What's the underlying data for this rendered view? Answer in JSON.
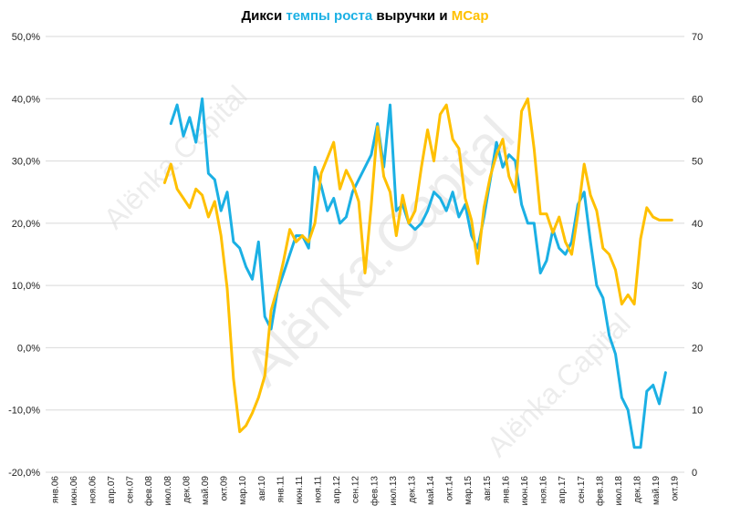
{
  "colors": {
    "revenue": "#1BB0E4",
    "mcap": "#FFC000",
    "title_text": "#000000",
    "grid": "#D9D9D9"
  },
  "chart_data": {
    "type": "line",
    "title_parts": [
      {
        "text": "Дикси ",
        "color": "#000000"
      },
      {
        "text": "темпы роста",
        "color": "#1BB0E4"
      },
      {
        "text": " выручки и ",
        "color": "#000000"
      },
      {
        "text": "MCap",
        "color": "#FFC000"
      }
    ],
    "left_axis": {
      "ylim": [
        -0.2,
        0.5
      ],
      "ticks": [
        -0.2,
        -0.1,
        0,
        0.1,
        0.2,
        0.3,
        0.4,
        0.5
      ],
      "tick_labels": [
        "-20,0%",
        "-10,0%",
        "0,0%",
        "10,0%",
        "20,0%",
        "30,0%",
        "40,0%",
        "50,0%"
      ]
    },
    "right_axis": {
      "ylim": [
        0,
        70
      ],
      "ticks": [
        0,
        10,
        20,
        30,
        40,
        50,
        60,
        70
      ],
      "tick_labels": [
        "0",
        "10",
        "20",
        "30",
        "40",
        "50",
        "60",
        "70"
      ]
    },
    "x_axis": {
      "labels": [
        "янв.06",
        "июн.06",
        "ноя.06",
        "апр.07",
        "сен.07",
        "фев.08",
        "июл.08",
        "дек.08",
        "май.09",
        "окт.09",
        "мар.10",
        "авг.10",
        "янв.11",
        "июн.11",
        "ноя.11",
        "апр.12",
        "сен.12",
        "фев.13",
        "июл.13",
        "дек.13",
        "май.14",
        "окт.14",
        "мар.15",
        "авг.15",
        "янв.16",
        "июн.16",
        "ноя.16",
        "апр.17",
        "сен.17",
        "фев.18",
        "июл.18",
        "дек.18",
        "май.19",
        "окт.19"
      ]
    },
    "grid": "horizontal",
    "watermark": "Alёnka.Capital",
    "series": [
      {
        "axis": "left",
        "color": "#1BB0E4",
        "points": [
          [
            20,
            0.36
          ],
          [
            21,
            0.39
          ],
          [
            22,
            0.34
          ],
          [
            23,
            0.37
          ],
          [
            24,
            0.33
          ],
          [
            25,
            0.4
          ],
          [
            26,
            0.28
          ],
          [
            27,
            0.27
          ],
          [
            28,
            0.22
          ],
          [
            29,
            0.25
          ],
          [
            30,
            0.17
          ],
          [
            31,
            0.16
          ],
          [
            32,
            0.13
          ],
          [
            33,
            0.11
          ],
          [
            34,
            0.17
          ],
          [
            35,
            0.05
          ],
          [
            36,
            0.03
          ],
          [
            37,
            0.09
          ],
          [
            38,
            0.12
          ],
          [
            39,
            0.15
          ],
          [
            40,
            0.18
          ],
          [
            41,
            0.18
          ],
          [
            42,
            0.16
          ],
          [
            43,
            0.29
          ],
          [
            44,
            0.26
          ],
          [
            45,
            0.22
          ],
          [
            46,
            0.24
          ],
          [
            47,
            0.2
          ],
          [
            48,
            0.21
          ],
          [
            49,
            0.25
          ],
          [
            50,
            0.27
          ],
          [
            51,
            0.29
          ],
          [
            52,
            0.31
          ],
          [
            53,
            0.36
          ],
          [
            54,
            0.29
          ],
          [
            55,
            0.39
          ],
          [
            56,
            0.22
          ],
          [
            57,
            0.23
          ],
          [
            58,
            0.2
          ],
          [
            59,
            0.19
          ],
          [
            60,
            0.2
          ],
          [
            61,
            0.22
          ],
          [
            62,
            0.25
          ],
          [
            63,
            0.24
          ],
          [
            64,
            0.22
          ],
          [
            65,
            0.25
          ],
          [
            66,
            0.21
          ],
          [
            67,
            0.23
          ],
          [
            68,
            0.18
          ],
          [
            69,
            0.16
          ],
          [
            70,
            0.21
          ],
          [
            71,
            0.27
          ],
          [
            72,
            0.33
          ],
          [
            73,
            0.29
          ],
          [
            74,
            0.31
          ],
          [
            75,
            0.3
          ],
          [
            76,
            0.23
          ],
          [
            77,
            0.2
          ],
          [
            78,
            0.2
          ],
          [
            79,
            0.12
          ],
          [
            80,
            0.14
          ],
          [
            81,
            0.19
          ],
          [
            82,
            0.16
          ],
          [
            83,
            0.15
          ],
          [
            84,
            0.17
          ],
          [
            85,
            0.23
          ],
          [
            86,
            0.25
          ],
          [
            87,
            0.17
          ],
          [
            88,
            0.1
          ],
          [
            89,
            0.08
          ],
          [
            90,
            0.02
          ],
          [
            91,
            -0.01
          ],
          [
            92,
            -0.08
          ],
          [
            93,
            -0.1
          ],
          [
            94,
            -0.16
          ],
          [
            95,
            -0.16
          ],
          [
            96,
            -0.07
          ],
          [
            97,
            -0.06
          ],
          [
            98,
            -0.09
          ],
          [
            99,
            -0.04
          ]
        ]
      },
      {
        "axis": "right",
        "color": "#FFC000",
        "points": [
          [
            19,
            46.5
          ],
          [
            20,
            49.5
          ],
          [
            21,
            45.5
          ],
          [
            22,
            44.0
          ],
          [
            23,
            42.5
          ],
          [
            24,
            45.5
          ],
          [
            25,
            44.5
          ],
          [
            26,
            41.0
          ],
          [
            27,
            43.5
          ],
          [
            28,
            38.0
          ],
          [
            29,
            29.5
          ],
          [
            30,
            15.0
          ],
          [
            31,
            6.5
          ],
          [
            32,
            7.5
          ],
          [
            33,
            9.5
          ],
          [
            34,
            12.0
          ],
          [
            35,
            15.5
          ],
          [
            36,
            26.0
          ],
          [
            37,
            29.5
          ],
          [
            38,
            34.0
          ],
          [
            39,
            39.0
          ],
          [
            40,
            37.0
          ],
          [
            41,
            38.0
          ],
          [
            42,
            37.0
          ],
          [
            43,
            40.0
          ],
          [
            44,
            48.0
          ],
          [
            45,
            50.5
          ],
          [
            46,
            53.0
          ],
          [
            47,
            45.5
          ],
          [
            48,
            48.5
          ],
          [
            49,
            46.5
          ],
          [
            50,
            43.5
          ],
          [
            51,
            32.0
          ],
          [
            52,
            43.0
          ],
          [
            53,
            55.5
          ],
          [
            54,
            47.5
          ],
          [
            55,
            45.0
          ],
          [
            56,
            38.0
          ],
          [
            57,
            44.5
          ],
          [
            58,
            40.0
          ],
          [
            59,
            42.0
          ],
          [
            60,
            49.0
          ],
          [
            61,
            55.0
          ],
          [
            62,
            50.0
          ],
          [
            63,
            57.5
          ],
          [
            64,
            59.0
          ],
          [
            65,
            53.5
          ],
          [
            66,
            52.0
          ],
          [
            67,
            44.0
          ],
          [
            68,
            40.5
          ],
          [
            69,
            33.5
          ],
          [
            70,
            42.5
          ],
          [
            71,
            47.5
          ],
          [
            72,
            51.0
          ],
          [
            73,
            53.5
          ],
          [
            74,
            47.5
          ],
          [
            75,
            45.0
          ],
          [
            76,
            58.0
          ],
          [
            77,
            60.0
          ],
          [
            78,
            52.0
          ],
          [
            79,
            41.5
          ],
          [
            80,
            41.5
          ],
          [
            81,
            38.5
          ],
          [
            82,
            41.0
          ],
          [
            83,
            37.0
          ],
          [
            84,
            35.0
          ],
          [
            85,
            41.5
          ],
          [
            86,
            49.5
          ],
          [
            87,
            44.5
          ],
          [
            88,
            42.0
          ],
          [
            89,
            36.0
          ],
          [
            90,
            35.0
          ],
          [
            91,
            32.5
          ],
          [
            92,
            27.0
          ],
          [
            93,
            28.5
          ],
          [
            94,
            27.0
          ],
          [
            95,
            37.5
          ],
          [
            96,
            42.5
          ],
          [
            97,
            41.0
          ],
          [
            98,
            40.5
          ],
          [
            99,
            40.5
          ],
          [
            100,
            40.5
          ]
        ]
      }
    ]
  }
}
